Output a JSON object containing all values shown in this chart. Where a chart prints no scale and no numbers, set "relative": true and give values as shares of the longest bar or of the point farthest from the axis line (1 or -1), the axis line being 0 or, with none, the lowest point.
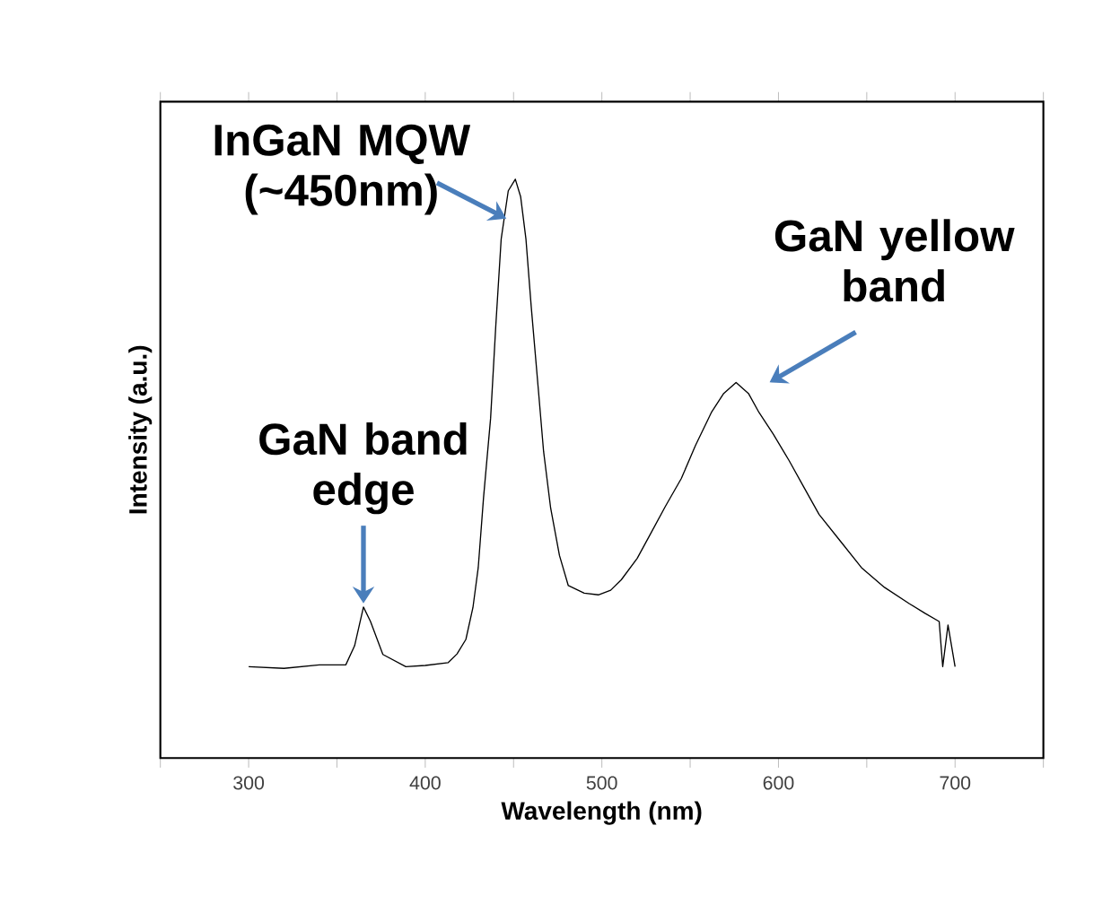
{
  "chart_data": {
    "type": "line",
    "relative": true,
    "xlabel": "Wavelength (nm)",
    "ylabel": "Intensity (a.u.)",
    "xlim": [
      250,
      750
    ],
    "xticks": [
      {
        "value": 250,
        "label": null
      },
      300,
      {
        "value": 350,
        "label": null
      },
      400,
      {
        "value": 450,
        "label": null
      },
      500,
      {
        "value": 550,
        "label": null
      },
      600,
      {
        "value": 650,
        "label": null
      },
      700,
      {
        "value": 750,
        "label": null
      }
    ],
    "x": [
      300,
      320,
      340,
      355,
      360,
      365,
      369,
      376,
      389,
      400,
      413,
      418,
      423,
      427,
      430,
      433,
      437,
      440,
      443,
      447,
      451,
      454,
      457,
      460,
      464,
      467,
      471,
      476,
      481,
      490,
      498,
      505,
      511,
      520,
      528,
      536,
      545,
      553,
      562,
      569,
      576,
      583,
      589,
      597,
      606,
      614,
      623,
      635,
      647,
      660,
      674,
      683,
      691,
      693,
      696,
      700
    ],
    "values": [
      0.158,
      0.155,
      0.161,
      0.161,
      0.194,
      0.261,
      0.236,
      0.179,
      0.158,
      0.16,
      0.165,
      0.18,
      0.205,
      0.26,
      0.329,
      0.45,
      0.587,
      0.75,
      0.897,
      0.98,
      1.0,
      0.97,
      0.897,
      0.78,
      0.638,
      0.53,
      0.432,
      0.35,
      0.298,
      0.285,
      0.282,
      0.29,
      0.308,
      0.345,
      0.39,
      0.435,
      0.483,
      0.54,
      0.597,
      0.63,
      0.649,
      0.63,
      0.597,
      0.56,
      0.514,
      0.47,
      0.421,
      0.375,
      0.329,
      0.295,
      0.267,
      0.25,
      0.236,
      0.158,
      0.23,
      0.158
    ],
    "color": "#000000",
    "annotations": [
      {
        "text": "GaN band edge",
        "x": 365,
        "y": 0.261
      },
      {
        "text": "InGaN MQW (~450nm)",
        "x": 450,
        "y": 1.0
      },
      {
        "text": "GaN yellow band",
        "x": 576,
        "y": 0.649
      }
    ]
  }
}
